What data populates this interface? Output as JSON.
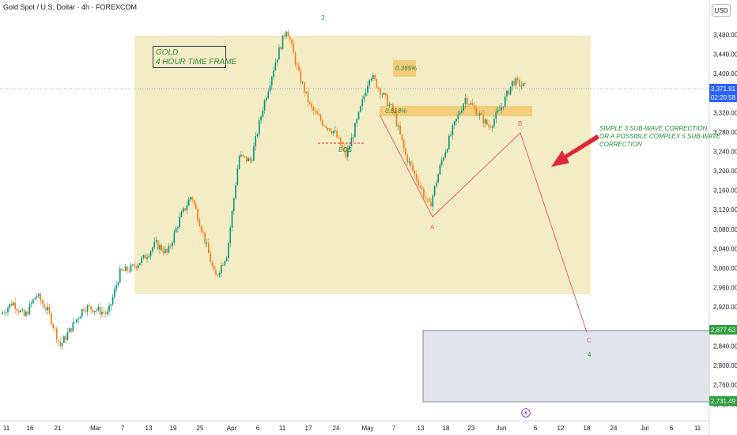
{
  "header": {
    "title": "Gold Spot / U.S. Dollar · 4h · FOREXCOM",
    "currency_button": "USD"
  },
  "price_axis": {
    "labels": [
      "3,480.00",
      "3,440.00",
      "3,400.00",
      "3,320.00",
      "3,280.00",
      "3,240.00",
      "3,200.00",
      "3,160.00",
      "3,120.00",
      "3,080.00",
      "3,040.00",
      "3,000.00",
      "2,960.00",
      "2,920.00",
      "2,840.00",
      "2,800.00",
      "2,760.00",
      "2,720.00"
    ],
    "current_price": "3,371.91",
    "countdown": "02:20:58",
    "level_upper": "2,877.63",
    "level_lower": "2,731.49"
  },
  "time_axis": {
    "labels": [
      "11",
      "16",
      "21",
      "Mar",
      "7",
      "13",
      "19",
      "25",
      "Apr",
      "6",
      "11",
      "17",
      "24",
      "May",
      "7",
      "13",
      "18",
      "23",
      "Jun",
      "6",
      "12",
      "18",
      "24",
      "Jul",
      "6",
      "11"
    ]
  },
  "annotations": {
    "gold_box_line1": "GOLD",
    "gold_box_line2": "4 HOUR TIME FRAME",
    "fib_0_365": "0.365%",
    "fib_0_618": "0.618%",
    "bos": "BOS",
    "correction_line1": "SIMPLE 3 SUB-WAVE CORRECTION",
    "correction_line2": "OR A POSSIBLE COMPLEX 5 SUB-WAVE",
    "correction_line3": "CORRECTION",
    "wave_3": "3",
    "wave_a": "A",
    "wave_b": "B",
    "wave_c": "C",
    "wave_4": "4"
  },
  "colors": {
    "up": "#089981",
    "down": "#f57f17",
    "zone": "#f0e6b0",
    "fib_box": "#f2c46a",
    "wave_line": "#e35d6a",
    "arrow": "#e0273a",
    "text_green": "#2e8b3a",
    "price_tag_blue": "#2962ff",
    "price_tag_green": "#2e9f3e"
  },
  "chart_data": {
    "type": "candlestick",
    "title": "Gold Spot / U.S. Dollar · 4h · FOREXCOM",
    "y_range": [
      2700,
      3520
    ],
    "x_ticks": [
      "11",
      "16",
      "21",
      "Mar",
      "7",
      "13",
      "19",
      "25",
      "Apr",
      "6",
      "11",
      "17",
      "24",
      "May",
      "7",
      "13",
      "18",
      "23",
      "Jun",
      "6",
      "12",
      "18",
      "24",
      "Jul",
      "6",
      "11"
    ],
    "price_path": [
      {
        "date": "Feb 11",
        "close": 2905
      },
      {
        "date": "Feb 14",
        "close": 2930
      },
      {
        "date": "Feb 17",
        "close": 2900
      },
      {
        "date": "Feb 20",
        "close": 2945
      },
      {
        "date": "Feb 24",
        "close": 2910
      },
      {
        "date": "Feb 27",
        "close": 2840
      },
      {
        "date": "Mar 1",
        "close": 2880
      },
      {
        "date": "Mar 4",
        "close": 2920
      },
      {
        "date": "Mar 7",
        "close": 2915
      },
      {
        "date": "Mar 11",
        "close": 2905
      },
      {
        "date": "Mar 14",
        "close": 2990
      },
      {
        "date": "Mar 18",
        "close": 3000
      },
      {
        "date": "Mar 21",
        "close": 3020
      },
      {
        "date": "Mar 24",
        "close": 3050
      },
      {
        "date": "Mar 27",
        "close": 3030
      },
      {
        "date": "Mar 31",
        "close": 3100
      },
      {
        "date": "Apr 2",
        "close": 3150
      },
      {
        "date": "Apr 4",
        "close": 3070
      },
      {
        "date": "Apr 7",
        "close": 2980
      },
      {
        "date": "Apr 9",
        "close": 3030
      },
      {
        "date": "Apr 11",
        "close": 3230
      },
      {
        "date": "Apr 14",
        "close": 3220
      },
      {
        "date": "Apr 16",
        "close": 3330
      },
      {
        "date": "Apr 18",
        "close": 3420
      },
      {
        "date": "Apr 21",
        "close": 3495
      },
      {
        "date": "Apr 22",
        "close": 3400
      },
      {
        "date": "Apr 24",
        "close": 3330
      },
      {
        "date": "Apr 27",
        "close": 3300
      },
      {
        "date": "Apr 30",
        "close": 3280
      },
      {
        "date": "May 1",
        "close": 3230
      },
      {
        "date": "May 3",
        "close": 3310
      },
      {
        "date": "May 6",
        "close": 3400
      },
      {
        "date": "May 8",
        "close": 3360
      },
      {
        "date": "May 10",
        "close": 3320
      },
      {
        "date": "May 12",
        "close": 3230
      },
      {
        "date": "May 14",
        "close": 3180
      },
      {
        "date": "May 15",
        "close": 3125
      },
      {
        "date": "May 18",
        "close": 3220
      },
      {
        "date": "May 21",
        "close": 3290
      },
      {
        "date": "May 24",
        "close": 3350
      },
      {
        "date": "May 27",
        "close": 3320
      },
      {
        "date": "May 29",
        "close": 3290
      },
      {
        "date": "Jun 1",
        "close": 3330
      },
      {
        "date": "Jun 3",
        "close": 3385
      },
      {
        "date": "Jun 5",
        "close": 3372
      }
    ],
    "zones": [
      {
        "name": "GOLD 4 HOUR TIME FRAME",
        "y_top": 3472,
        "y_bottom": 2945
      },
      {
        "name": "0.365%",
        "y_top": 3420,
        "y_bottom": 3400
      },
      {
        "name": "0.618%",
        "y_top": 3335,
        "y_bottom": 3318
      },
      {
        "name": "target",
        "y_top": 2877.63,
        "y_bottom": 2731.49
      }
    ],
    "wave_points": [
      {
        "label": "3",
        "date": "Apr 21",
        "price": 3495
      },
      {
        "label": "A",
        "date": "May 15",
        "price": 3110
      },
      {
        "label": "B",
        "date": "Jun 5",
        "price": 3285
      },
      {
        "label": "C",
        "date": "Jun 18",
        "price": 2878
      }
    ],
    "current_price": 3371.91
  }
}
